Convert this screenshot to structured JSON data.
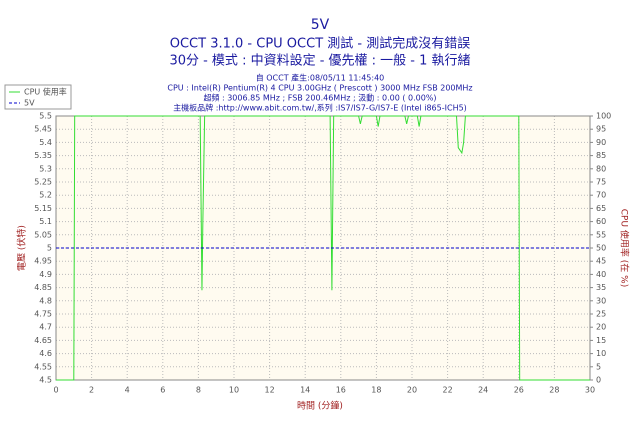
{
  "chart_data": {
    "type": "line",
    "title": "5V",
    "subtitle_lines": [
      "OCCT 3.1.0 - CPU OCCT 測試 - 測試完成沒有錯誤",
      "30分 - 模式 : 中資料設定 - 優先權 : 一般 - 1 執行緒"
    ],
    "info_lines": [
      "自 OCCT 產生:08/05/11 11:45:40",
      "CPU : Intel(R) Pentium(R) 4 CPU 3.00GHz ( Prescott ) 3000 MHz FSB 200MHz",
      "超頻 : 3006.85 MHz ; FSB 200.46MHz ; 汲動 : 0.00 ( 0.00%)",
      "主機板品牌 :http://www.abit.com.tw/,系列 :IS7/IS7-G/IS7-E (Intel i865-ICH5)"
    ],
    "x_label": "時間 (分鐘)",
    "y_label": "電壓 (伏特)",
    "y2_label": "CPU 使用率 (在 %)",
    "xlim": [
      0,
      30
    ],
    "xticks": [
      0,
      2,
      4,
      6,
      8,
      10,
      12,
      14,
      16,
      18,
      20,
      22,
      24,
      26,
      28,
      30
    ],
    "ylim": [
      4.5,
      5.5
    ],
    "yticks": [
      4.5,
      4.55,
      4.6,
      4.65,
      4.7,
      4.75,
      4.8,
      4.85,
      4.9,
      4.95,
      5,
      5.05,
      5.1,
      5.15,
      5.2,
      5.25,
      5.3,
      5.35,
      5.4,
      5.45,
      5.5
    ],
    "y2lim": [
      0,
      100
    ],
    "y2ticks": [
      0,
      5,
      10,
      15,
      20,
      25,
      30,
      35,
      40,
      45,
      50,
      55,
      60,
      65,
      70,
      75,
      80,
      85,
      90,
      95,
      100
    ],
    "grid": true,
    "legend": "top-left",
    "series": [
      {
        "name": "CPU 使用率",
        "color": "#33dd33",
        "axis": "y2",
        "dash": false,
        "x": [
          0,
          1,
          1.05,
          8.1,
          8.2,
          8.25,
          8.35,
          15.4,
          15.5,
          15.6,
          17.0,
          17.1,
          17.2,
          18,
          18.1,
          18.2,
          19.6,
          19.7,
          19.8,
          20.3,
          20.4,
          20.5,
          22.5,
          22.6,
          22.8,
          22.9,
          23,
          26,
          26.05,
          30
        ],
        "values": [
          0,
          0,
          100,
          100,
          34,
          60,
          100,
          100,
          34,
          100,
          100,
          97,
          100,
          100,
          96,
          100,
          100,
          97,
          100,
          100,
          96,
          100,
          100,
          88,
          86,
          90,
          100,
          100,
          0,
          0
        ]
      },
      {
        "name": "5V",
        "color": "#0000cc",
        "axis": "y",
        "dash": true,
        "x": [
          0,
          30
        ],
        "values": [
          5,
          5
        ]
      }
    ]
  }
}
